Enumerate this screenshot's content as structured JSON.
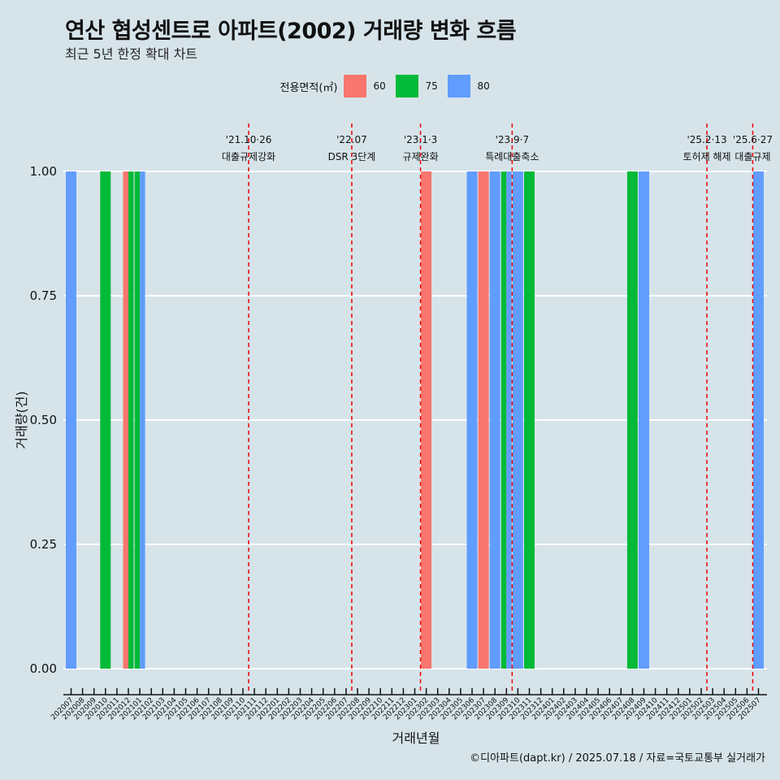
{
  "title": "연산 협성센트로 아파트(2002) 거래량 변화 흐름",
  "subtitle": "최근 5년 한정 확대 차트",
  "caption": "©디아파트(dapt.kr) / 2025.07.18 / 자료=국토교통부 실거래가",
  "legend": {
    "title": "전용면적(㎡)",
    "items": [
      {
        "label": "60",
        "color": "#f8766d"
      },
      {
        "label": "75",
        "color": "#00ba38"
      },
      {
        "label": "80",
        "color": "#619cff"
      }
    ]
  },
  "colors": {
    "background": "#d6e4ea",
    "grid": "#ffffff",
    "event_line": "#ee0000"
  },
  "chart_data": {
    "type": "bar",
    "xlabel": "거래년월",
    "ylabel": "거래량(건)",
    "ylim": [
      0,
      1
    ],
    "yticks": [
      "0.00",
      "0.25",
      "0.50",
      "0.75",
      "1.00"
    ],
    "categories": [
      "202007",
      "202008",
      "202009",
      "202010",
      "202011",
      "202012",
      "202101",
      "202102",
      "202103",
      "202104",
      "202105",
      "202106",
      "202107",
      "202108",
      "202109",
      "202110",
      "202111",
      "202112",
      "202201",
      "202202",
      "202203",
      "202204",
      "202205",
      "202206",
      "202207",
      "202208",
      "202209",
      "202210",
      "202211",
      "202212",
      "202301",
      "202302",
      "202303",
      "202304",
      "202305",
      "202306",
      "202307",
      "202308",
      "202309",
      "202310",
      "202311",
      "202312",
      "202401",
      "202402",
      "202403",
      "202404",
      "202405",
      "202406",
      "202407",
      "202408",
      "202409",
      "202410",
      "202411",
      "202412",
      "202501",
      "202502",
      "202503",
      "202504",
      "202505",
      "202506",
      "202507"
    ],
    "bars": [
      {
        "month": "202007",
        "area": "80",
        "value": 1
      },
      {
        "month": "202010",
        "area": "75",
        "value": 1
      },
      {
        "month": "202012",
        "area": "60",
        "value": 1
      },
      {
        "month": "202012",
        "area": "75",
        "value": 1
      },
      {
        "month": "202101",
        "area": "75",
        "value": 1
      },
      {
        "month": "202101",
        "area": "80",
        "value": 1
      },
      {
        "month": "202302",
        "area": "60",
        "value": 1
      },
      {
        "month": "202306",
        "area": "80",
        "value": 1
      },
      {
        "month": "202307",
        "area": "60",
        "value": 1
      },
      {
        "month": "202308",
        "area": "80",
        "value": 1
      },
      {
        "month": "202309",
        "area": "75",
        "value": 1
      },
      {
        "month": "202309",
        "area": "80",
        "value": 1
      },
      {
        "month": "202310",
        "area": "80",
        "value": 1
      },
      {
        "month": "202311",
        "area": "75",
        "value": 1
      },
      {
        "month": "202408",
        "area": "75",
        "value": 1
      },
      {
        "month": "202409",
        "area": "80",
        "value": 1
      },
      {
        "month": "202507",
        "area": "80",
        "value": 1
      }
    ],
    "events": [
      {
        "date": "'21.10·26",
        "label": "대출규제강화",
        "month_pos": 15.5
      },
      {
        "date": "'22.07",
        "label": "DSR 3단계",
        "month_pos": 24.5
      },
      {
        "date": "'23.1·3",
        "label": "규제완화",
        "month_pos": 30.5
      },
      {
        "date": "'23.9·7",
        "label": "특례대출축소",
        "month_pos": 38.5
      },
      {
        "date": "'25.2·13",
        "label": "토허제 해제",
        "month_pos": 55.5
      },
      {
        "date": "'25.6·27",
        "label": "대출규제",
        "month_pos": 59.5
      }
    ]
  }
}
